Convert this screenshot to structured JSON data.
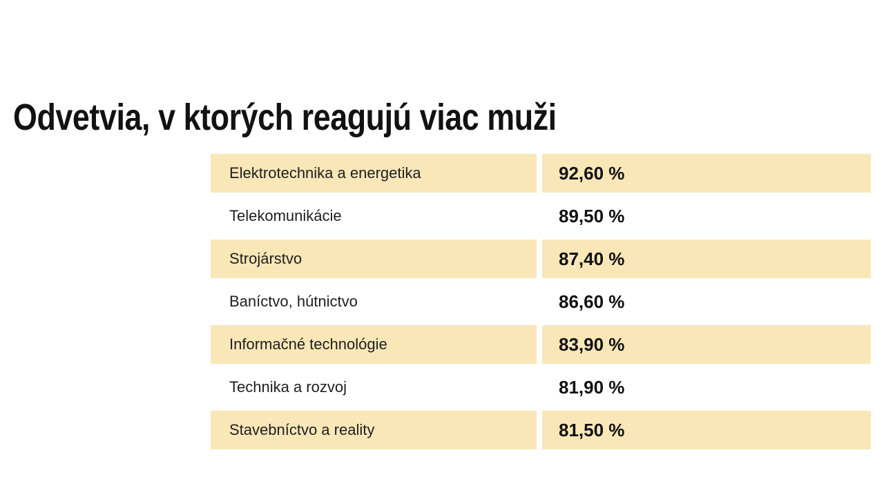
{
  "title": "Odvetvia, v ktorých reagujú viac muži",
  "colors": {
    "background": "#ffffff",
    "row_highlight": "#f9e7b8",
    "title_color": "#121212",
    "label_color": "#1e1e1e",
    "value_color": "#111111"
  },
  "chart_data": {
    "type": "table",
    "title": "Odvetvia, v ktorých reagujú viac muži",
    "value_format": "percent, comma decimal separator, space before % sign",
    "highlighted_row_indexes": [
      0,
      2,
      4,
      6
    ],
    "rows": [
      {
        "label": "Elektrotechnika a energetika",
        "value": "92,60 %",
        "percent": 92.6
      },
      {
        "label": "Telekomunikácie",
        "value": "89,50 %",
        "percent": 89.5
      },
      {
        "label": "Strojárstvo",
        "value": "87,40 %",
        "percent": 87.4
      },
      {
        "label": "Baníctvo, hútnictvo",
        "value": "86,60 %",
        "percent": 86.6
      },
      {
        "label": "Informačné technológie",
        "value": "83,90 %",
        "percent": 83.9
      },
      {
        "label": "Technika a rozvoj",
        "value": "81,90 %",
        "percent": 81.9
      },
      {
        "label": "Stavebníctvo a reality",
        "value": "81,50 %",
        "percent": 81.5
      }
    ]
  }
}
